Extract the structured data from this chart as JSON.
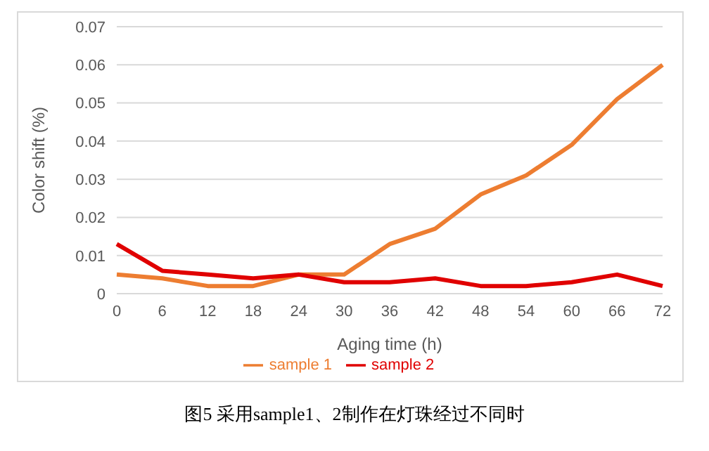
{
  "chart_data": {
    "type": "line",
    "xlabel": "Aging time (h)",
    "ylabel": "Color shift (%)",
    "categories": [
      "0",
      "6",
      "12",
      "18",
      "24",
      "30",
      "36",
      "42",
      "48",
      "54",
      "60",
      "66",
      "72"
    ],
    "series": [
      {
        "name": "sample 1",
        "color": "#ed7d31",
        "values": [
          0.005,
          0.004,
          0.002,
          0.002,
          0.005,
          0.005,
          0.013,
          0.017,
          0.026,
          0.031,
          0.039,
          0.051,
          0.06
        ]
      },
      {
        "name": "sample 2",
        "color": "#e00000",
        "values": [
          0.013,
          0.006,
          0.005,
          0.004,
          0.005,
          0.003,
          0.003,
          0.004,
          0.002,
          0.002,
          0.003,
          0.005,
          0.002
        ]
      }
    ],
    "ylim": [
      0,
      0.07
    ],
    "yticks": [
      0,
      0.01,
      0.02,
      0.03,
      0.04,
      0.05,
      0.06,
      0.07
    ],
    "grid": "y",
    "legend": "bottom",
    "marker": "none",
    "line_style": "solid",
    "annotations": [
      "图5 采用sample1、2制作在灯珠经过不同时"
    ]
  }
}
